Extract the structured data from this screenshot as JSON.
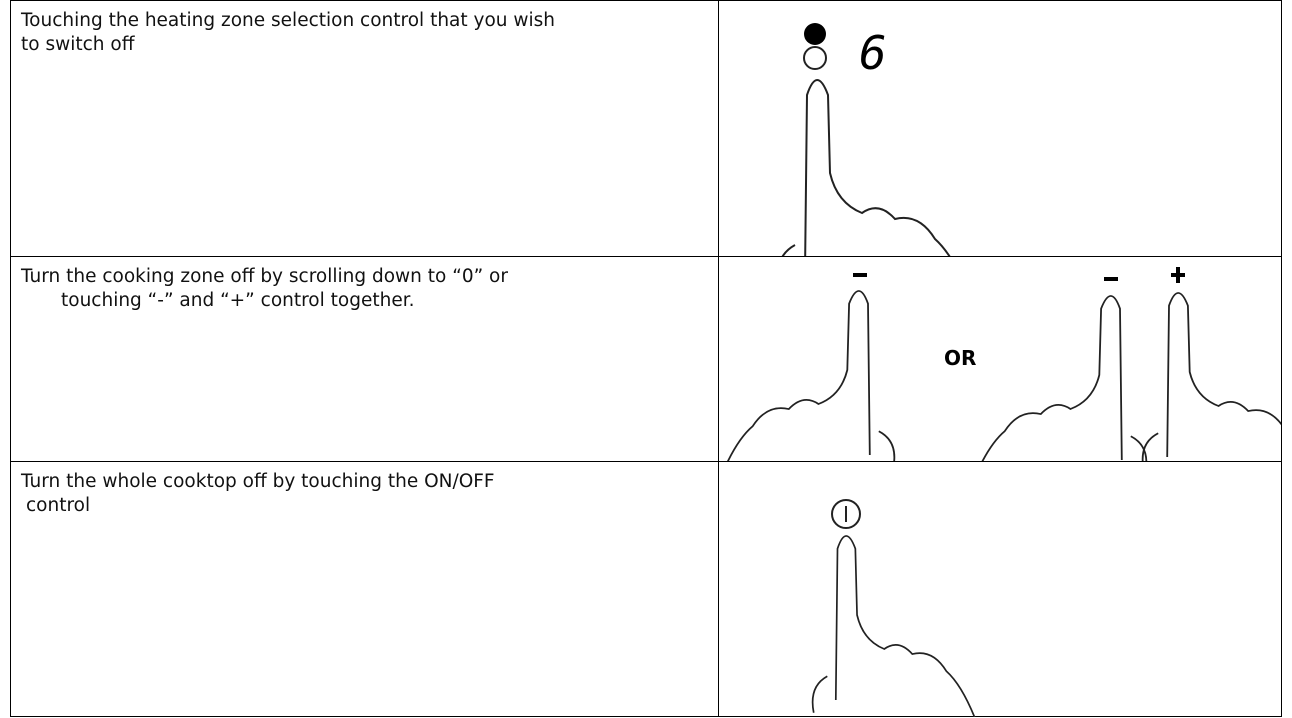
{
  "table": {
    "rows": [
      {
        "text": [
          "Touching the heating zone selection control that you wish",
          "to switch off"
        ],
        "display": "6"
      },
      {
        "text": [
          "Turn the cooking zone off by scrolling down to “0” or",
          "touching “-” and “+” control together."
        ],
        "label": "OR"
      },
      {
        "text": [
          "Turn the whole cooktop off by touching the ON/OFF",
          "control"
        ]
      }
    ]
  }
}
